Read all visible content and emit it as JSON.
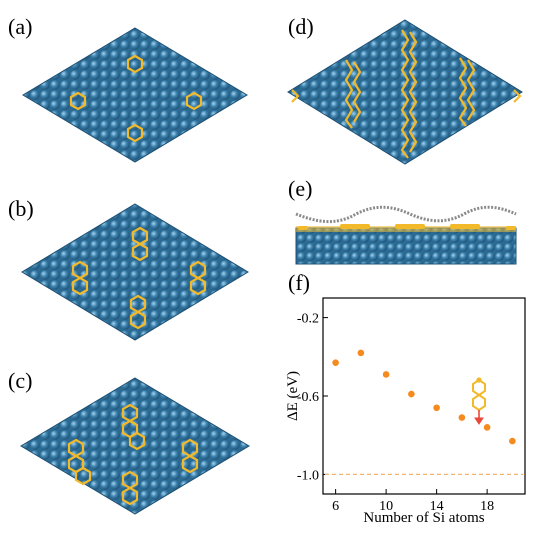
{
  "panels": {
    "a": "(a)",
    "b": "(b)",
    "c": "(c)",
    "d": "(d)",
    "e": "(e)",
    "f": "(f)"
  },
  "colors": {
    "substrate": "#3f86b2",
    "substrate_dark": "#1d4f73",
    "silicon": "#f2b92a",
    "graphene": "#8a8a8a",
    "points": "#f58a1f",
    "reference_line": "#f5b46e",
    "inset_arrow": "#e8483a"
  },
  "chart_data": {
    "type": "scatter",
    "x": [
      6,
      8,
      10,
      12,
      14,
      16,
      18,
      20
    ],
    "y": [
      -0.43,
      -0.38,
      -0.49,
      -0.59,
      -0.66,
      -0.71,
      -0.76,
      -0.83
    ],
    "xlabel": "Number of Si atoms",
    "ylabel": "ΔE (eV)",
    "xlim": [
      5,
      21
    ],
    "ylim": [
      -1.1,
      -0.1
    ],
    "xticks": [
      6,
      10,
      14,
      18
    ],
    "yticks": [
      -0.2,
      -0.6,
      -1.0
    ],
    "ytick_labels": [
      "-0.2",
      "-0.6",
      "-1.0"
    ],
    "reference_line_y": -1.0
  }
}
